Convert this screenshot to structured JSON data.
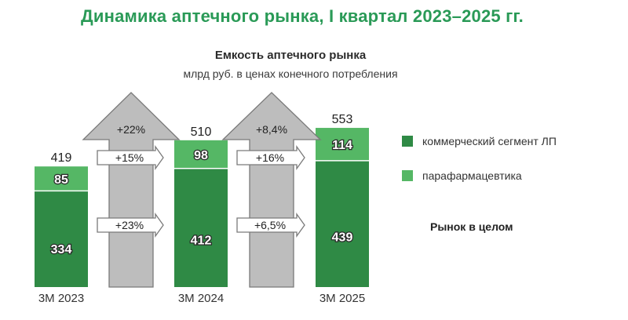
{
  "header": {
    "main_title": "Динамика аптечного рынка, I квартал 2023–2025 гг.",
    "chart_title": "Емкость аптечного рынка",
    "chart_subtitle": "млрд руб. в ценах конечного потребления"
  },
  "colors": {
    "title_green": "#2a9a57",
    "commercial": "#2f8a45",
    "parapharm": "#55b765",
    "arrow_fill": "#bdbdbd",
    "arrow_stroke": "#7a7a7a"
  },
  "legend": {
    "commercial_label": "коммерческий сегмент ЛП",
    "parapharm_label": "парафармацевтика",
    "market_label": "Рынок в целом"
  },
  "chart_data": {
    "type": "bar",
    "stacked": true,
    "categories": [
      "3М 2023",
      "3М 2024",
      "3М 2025"
    ],
    "series": [
      {
        "name": "коммерческий сегмент ЛП",
        "values": [
          334,
          412,
          439
        ]
      },
      {
        "name": "парафармацевтика",
        "values": [
          85,
          98,
          114
        ]
      }
    ],
    "totals": [
      419,
      510,
      553
    ],
    "growth": [
      {
        "total": "+22%",
        "parapharm": "+15%",
        "commercial": "+23%"
      },
      {
        "total": "+8,4%",
        "parapharm": "+16%",
        "commercial": "+6,5%"
      }
    ],
    "ylim": [
      0,
      600
    ],
    "grid": false,
    "legend_position": "right"
  }
}
